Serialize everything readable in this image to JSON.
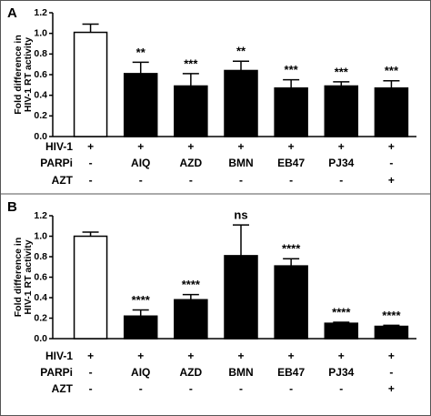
{
  "chart_data": [
    {
      "type": "bar",
      "panel": "A",
      "ylabel": [
        "Fold difference in",
        "HIV-1 RT activity"
      ],
      "categories": [
        null,
        null,
        null,
        null,
        null,
        null,
        null
      ],
      "values": [
        1.01,
        0.61,
        0.49,
        0.64,
        0.47,
        0.49,
        0.47
      ],
      "errors": [
        0.08,
        0.11,
        0.12,
        0.09,
        0.08,
        0.04,
        0.07
      ],
      "significance": [
        null,
        "**",
        "***",
        "**",
        "***",
        "***",
        "***"
      ],
      "colors": [
        "#ffffff",
        "#000000",
        "#000000",
        "#000000",
        "#000000",
        "#000000",
        "#000000"
      ],
      "ylim": [
        0,
        1.2
      ],
      "yticks": [
        {
          "value": 0,
          "label": "0.0"
        },
        0.2,
        0.4,
        0.6,
        0.8,
        {
          "value": 1,
          "label": "1.0"
        },
        1.2
      ],
      "conditions": [
        {
          "name": "HIV-1",
          "cells": [
            "+",
            "+",
            "+",
            "+",
            "+",
            "+",
            "+"
          ]
        },
        {
          "name": "PARPi",
          "cells": [
            "-",
            "AIQ",
            "AZD",
            "BMN",
            "EB47",
            "PJ34",
            "-"
          ]
        },
        {
          "name": "AZT",
          "cells": [
            "-",
            "-",
            "-",
            "-",
            "-",
            "-",
            "+"
          ]
        }
      ]
    },
    {
      "type": "bar",
      "panel": "B",
      "ylabel": [
        "Fold difference in",
        "HIV-1 RT activity"
      ],
      "categories": [
        null,
        null,
        null,
        null,
        null,
        null,
        null
      ],
      "values": [
        1.0,
        0.22,
        0.38,
        0.81,
        0.71,
        0.15,
        0.12
      ],
      "errors": [
        0.04,
        0.06,
        0.05,
        0.3,
        0.07,
        0.01,
        0.01
      ],
      "significance": [
        null,
        "****",
        "****",
        "ns",
        "****",
        "****",
        "****"
      ],
      "colors": [
        "#ffffff",
        "#000000",
        "#000000",
        "#000000",
        "#000000",
        "#000000",
        "#000000"
      ],
      "ylim": [
        0,
        1.2
      ],
      "yticks": [
        {
          "value": 0,
          "label": "0.0"
        },
        0.2,
        0.4,
        0.6,
        0.8,
        {
          "value": 1,
          "label": "1.0"
        },
        1.2
      ],
      "conditions": [
        {
          "name": "HIV-1",
          "cells": [
            "+",
            "+",
            "+",
            "+",
            "+",
            "+",
            "+"
          ]
        },
        {
          "name": "PARPi",
          "cells": [
            "-",
            "AIQ",
            "AZD",
            "BMN",
            "EB47",
            "PJ34",
            "-"
          ]
        },
        {
          "name": "AZT",
          "cells": [
            "-",
            "-",
            "-",
            "-",
            "-",
            "-",
            "+"
          ]
        }
      ]
    }
  ]
}
